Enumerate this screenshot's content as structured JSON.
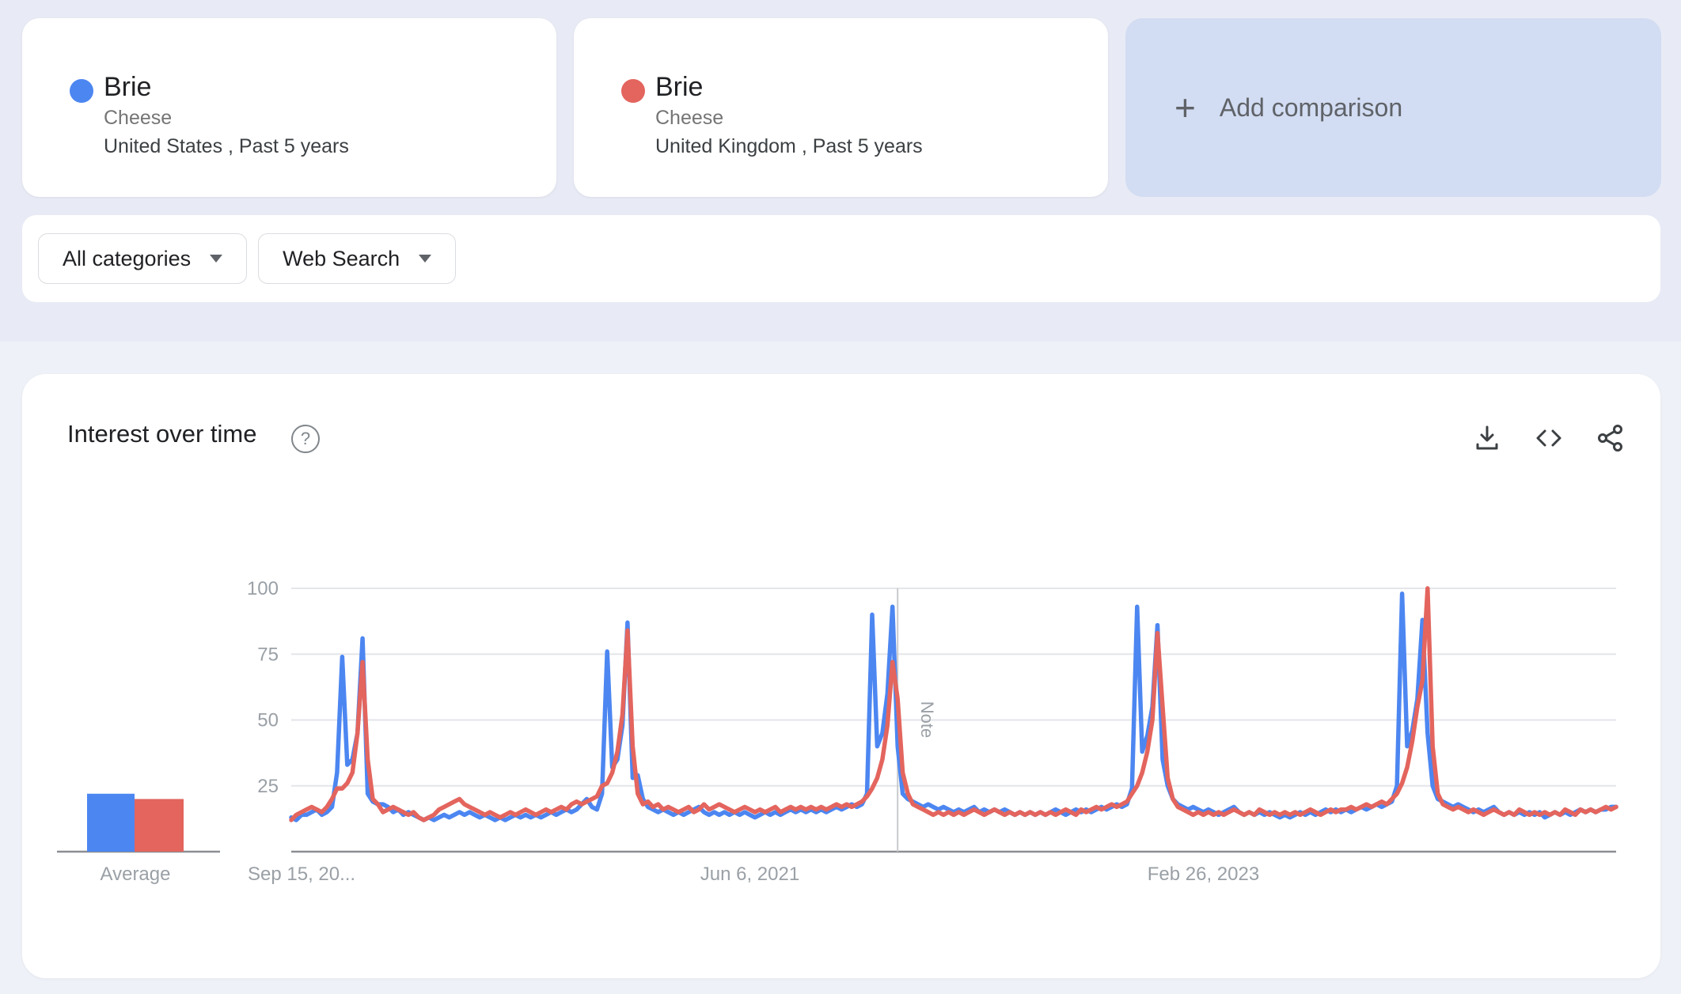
{
  "comparison_cards": [
    {
      "term": "Brie",
      "category": "Cheese",
      "scope": "United States , Past 5 years",
      "color": "#4c86f1",
      "marker": "circle-marker"
    },
    {
      "term": "Brie",
      "category": "Cheese",
      "scope": "United Kingdom , Past 5 years",
      "color": "#e3655e",
      "marker": "circle-marker"
    }
  ],
  "add_comparison": {
    "plus": "+",
    "label": "Add comparison"
  },
  "filters": {
    "category": "All categories",
    "search_type": "Web Search"
  },
  "panel": {
    "title": "Interest over time",
    "help_glyph": "?",
    "actions": [
      "download-icon",
      "embed-icon",
      "share-icon"
    ]
  },
  "chart_data": {
    "type": "line",
    "title": "Interest over time",
    "frequency": "weekly",
    "ylim": [
      0,
      100
    ],
    "grid": "horizontal",
    "yticks": [
      25,
      50,
      75,
      100
    ],
    "xticks": [
      {
        "label": "Sep 15, 20...",
        "index": 0,
        "anchor": "start"
      },
      {
        "label": "Jun 6, 2021",
        "index": 90,
        "anchor": "middle"
      },
      {
        "label": "Feb 26, 2023",
        "index": 179,
        "anchor": "middle"
      }
    ],
    "note_marker": {
      "label": "Note",
      "index": 119
    },
    "average_label": "Average",
    "series": [
      {
        "name": "Brie (United States)",
        "color": "#4c86f1",
        "average": 22,
        "values": [
          13,
          12,
          14,
          14,
          15,
          16,
          14,
          15,
          17,
          30,
          74,
          33,
          35,
          45,
          81,
          22,
          19,
          18,
          18,
          17,
          15,
          16,
          14,
          15,
          14,
          13,
          12,
          13,
          12,
          13,
          14,
          13,
          14,
          15,
          14,
          15,
          14,
          13,
          14,
          13,
          12,
          13,
          12,
          13,
          14,
          13,
          14,
          13,
          14,
          13,
          14,
          15,
          14,
          15,
          16,
          15,
          16,
          18,
          20,
          17,
          16,
          22,
          76,
          32,
          35,
          48,
          87,
          28,
          29,
          20,
          17,
          16,
          15,
          16,
          15,
          14,
          15,
          14,
          15,
          16,
          17,
          15,
          14,
          15,
          14,
          15,
          14,
          15,
          14,
          15,
          14,
          13,
          14,
          15,
          14,
          15,
          14,
          15,
          16,
          15,
          16,
          15,
          16,
          15,
          16,
          15,
          16,
          17,
          16,
          17,
          18,
          17,
          18,
          22,
          90,
          40,
          45,
          60,
          93,
          40,
          22,
          20,
          19,
          18,
          17,
          18,
          17,
          16,
          17,
          16,
          15,
          16,
          15,
          16,
          17,
          15,
          16,
          15,
          16,
          15,
          16,
          15,
          14,
          15,
          14,
          15,
          14,
          15,
          14,
          15,
          16,
          15,
          14,
          15,
          16,
          15,
          16,
          15,
          16,
          17,
          16,
          17,
          18,
          17,
          18,
          24,
          93,
          38,
          44,
          55,
          86,
          35,
          25,
          20,
          18,
          17,
          16,
          17,
          16,
          15,
          16,
          15,
          14,
          15,
          16,
          17,
          15,
          14,
          15,
          14,
          15,
          14,
          15,
          14,
          13,
          14,
          13,
          14,
          15,
          14,
          15,
          14,
          15,
          16,
          15,
          16,
          15,
          16,
          15,
          16,
          17,
          16,
          17,
          18,
          17,
          18,
          19,
          25,
          98,
          40,
          46,
          58,
          88,
          45,
          25,
          20,
          19,
          18,
          17,
          18,
          17,
          16,
          15,
          16,
          15,
          16,
          17,
          15,
          14,
          15,
          14,
          15,
          14,
          15,
          14,
          15,
          13,
          14,
          15,
          14,
          15,
          14,
          15,
          16,
          15,
          16,
          15,
          16,
          16,
          17,
          17
        ]
      },
      {
        "name": "Brie (United Kingdom)",
        "color": "#e3655e",
        "average": 20,
        "values": [
          12,
          14,
          15,
          16,
          17,
          16,
          15,
          17,
          20,
          24,
          24,
          26,
          30,
          45,
          72,
          35,
          20,
          18,
          15,
          16,
          17,
          16,
          15,
          14,
          15,
          13,
          12,
          13,
          14,
          16,
          17,
          18,
          19,
          20,
          18,
          17,
          16,
          15,
          14,
          15,
          14,
          13,
          14,
          15,
          14,
          15,
          16,
          15,
          14,
          15,
          16,
          15,
          16,
          17,
          16,
          18,
          19,
          18,
          19,
          20,
          21,
          25,
          26,
          30,
          38,
          52,
          84,
          40,
          22,
          18,
          19,
          17,
          18,
          16,
          17,
          16,
          15,
          16,
          17,
          15,
          16,
          18,
          16,
          17,
          18,
          17,
          16,
          15,
          16,
          17,
          16,
          15,
          16,
          15,
          16,
          17,
          15,
          16,
          17,
          16,
          17,
          16,
          17,
          16,
          17,
          16,
          17,
          18,
          17,
          18,
          17,
          18,
          19,
          21,
          24,
          28,
          35,
          48,
          72,
          58,
          30,
          22,
          18,
          17,
          16,
          15,
          14,
          15,
          14,
          15,
          14,
          15,
          14,
          15,
          16,
          15,
          14,
          15,
          16,
          15,
          14,
          15,
          14,
          15,
          14,
          15,
          14,
          15,
          14,
          15,
          14,
          15,
          16,
          15,
          14,
          16,
          15,
          16,
          17,
          16,
          17,
          18,
          17,
          18,
          19,
          22,
          25,
          30,
          38,
          50,
          83,
          55,
          28,
          20,
          17,
          16,
          15,
          14,
          15,
          14,
          15,
          14,
          15,
          14,
          15,
          16,
          15,
          14,
          15,
          14,
          16,
          15,
          14,
          15,
          14,
          15,
          14,
          15,
          14,
          15,
          16,
          15,
          14,
          15,
          16,
          15,
          16,
          16,
          17,
          16,
          17,
          18,
          17,
          18,
          19,
          18,
          20,
          22,
          26,
          32,
          42,
          55,
          65,
          100,
          40,
          22,
          18,
          17,
          16,
          17,
          16,
          15,
          16,
          15,
          14,
          15,
          16,
          15,
          14,
          15,
          14,
          16,
          15,
          14,
          15,
          14,
          15,
          14,
          15,
          14,
          16,
          15,
          14,
          16,
          15,
          16,
          15,
          16,
          17,
          16,
          17
        ]
      }
    ],
    "colors": {
      "grid": "#e4e6e9",
      "baseline": "#8b8e92",
      "axis_text": "#9aa0a6",
      "note_line": "#c8cacd"
    }
  }
}
